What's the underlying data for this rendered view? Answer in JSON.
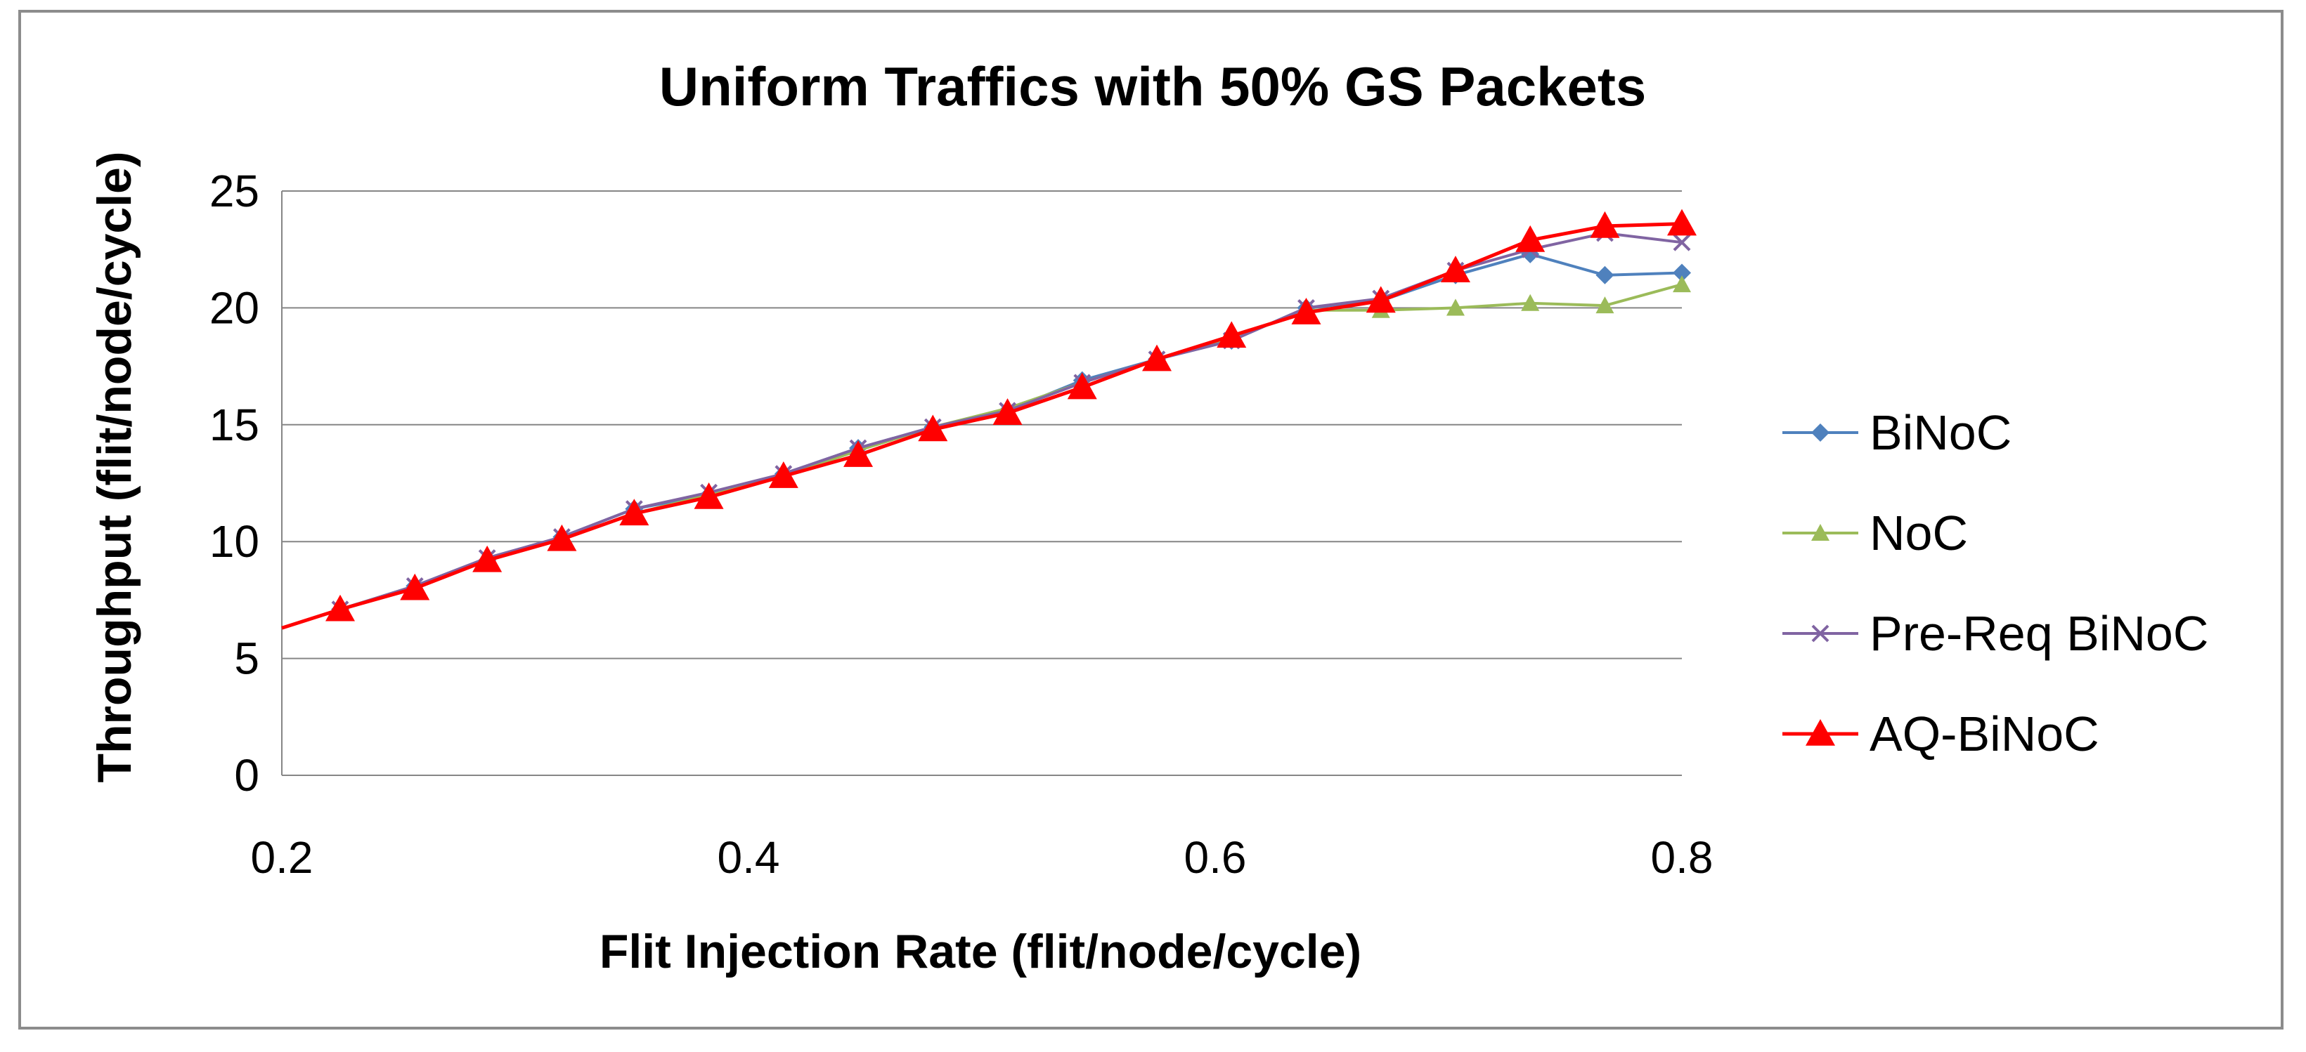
{
  "chart_data": {
    "type": "line",
    "title": "Uniform Traffics with 50% GS Packets",
    "xlabel": "Flit Injection Rate (flit/node/cycle)",
    "ylabel": "Throughput (flit/node/cycle)",
    "xlim": [
      0.2,
      0.8
    ],
    "ylim": [
      0,
      25
    ],
    "xticks": [
      "0.2",
      "0.4",
      "0.6",
      "0.8"
    ],
    "yticks": [
      "0",
      "5",
      "10",
      "15",
      "20",
      "25"
    ],
    "grid": true,
    "legend_position": "right",
    "series": [
      {
        "name": "BiNoC",
        "color": "#4F81BD",
        "marker": "diamond",
        "x": [
          0.2,
          0.225,
          0.257,
          0.288,
          0.32,
          0.351,
          0.383,
          0.415,
          0.447,
          0.479,
          0.511,
          0.543,
          0.575,
          0.607,
          0.639,
          0.671,
          0.703,
          0.735,
          0.767,
          0.8
        ],
        "y": [
          6.3,
          7.1,
          8.1,
          9.2,
          10.2,
          11.4,
          12.0,
          12.9,
          14.0,
          14.9,
          15.6,
          16.9,
          17.8,
          18.6,
          20.0,
          20.3,
          21.4,
          22.3,
          21.4,
          21.5
        ]
      },
      {
        "name": "NoC",
        "color": "#9BBB59",
        "marker": "triangle",
        "x": [
          0.2,
          0.225,
          0.257,
          0.288,
          0.32,
          0.351,
          0.383,
          0.415,
          0.447,
          0.479,
          0.511,
          0.543,
          0.575,
          0.607,
          0.639,
          0.671,
          0.703,
          0.735,
          0.767,
          0.8
        ],
        "y": [
          6.3,
          7.1,
          8.1,
          9.2,
          10.1,
          11.2,
          12.0,
          12.8,
          13.9,
          14.9,
          15.7,
          16.8,
          17.8,
          18.7,
          19.9,
          19.9,
          20.0,
          20.2,
          20.1,
          21.0
        ]
      },
      {
        "name": "Pre-Req BiNoC",
        "color": "#8064A2",
        "marker": "x",
        "x": [
          0.2,
          0.225,
          0.257,
          0.288,
          0.32,
          0.351,
          0.383,
          0.415,
          0.447,
          0.479,
          0.511,
          0.543,
          0.575,
          0.607,
          0.639,
          0.671,
          0.703,
          0.735,
          0.767,
          0.8
        ],
        "y": [
          6.3,
          7.1,
          8.1,
          9.3,
          10.2,
          11.4,
          12.1,
          12.9,
          14.0,
          14.9,
          15.6,
          16.8,
          17.8,
          18.6,
          20.0,
          20.4,
          21.6,
          22.5,
          23.2,
          22.8
        ]
      },
      {
        "name": "AQ-BiNoC",
        "color": "#FF0000",
        "marker": "triangle-large",
        "x": [
          0.2,
          0.225,
          0.257,
          0.288,
          0.32,
          0.351,
          0.383,
          0.415,
          0.447,
          0.479,
          0.511,
          0.543,
          0.575,
          0.607,
          0.639,
          0.671,
          0.703,
          0.735,
          0.767,
          0.8
        ],
        "y": [
          6.3,
          7.1,
          8.0,
          9.2,
          10.1,
          11.2,
          11.9,
          12.8,
          13.7,
          14.8,
          15.5,
          16.6,
          17.8,
          18.8,
          19.8,
          20.3,
          21.6,
          22.9,
          23.5,
          23.6
        ]
      }
    ]
  }
}
